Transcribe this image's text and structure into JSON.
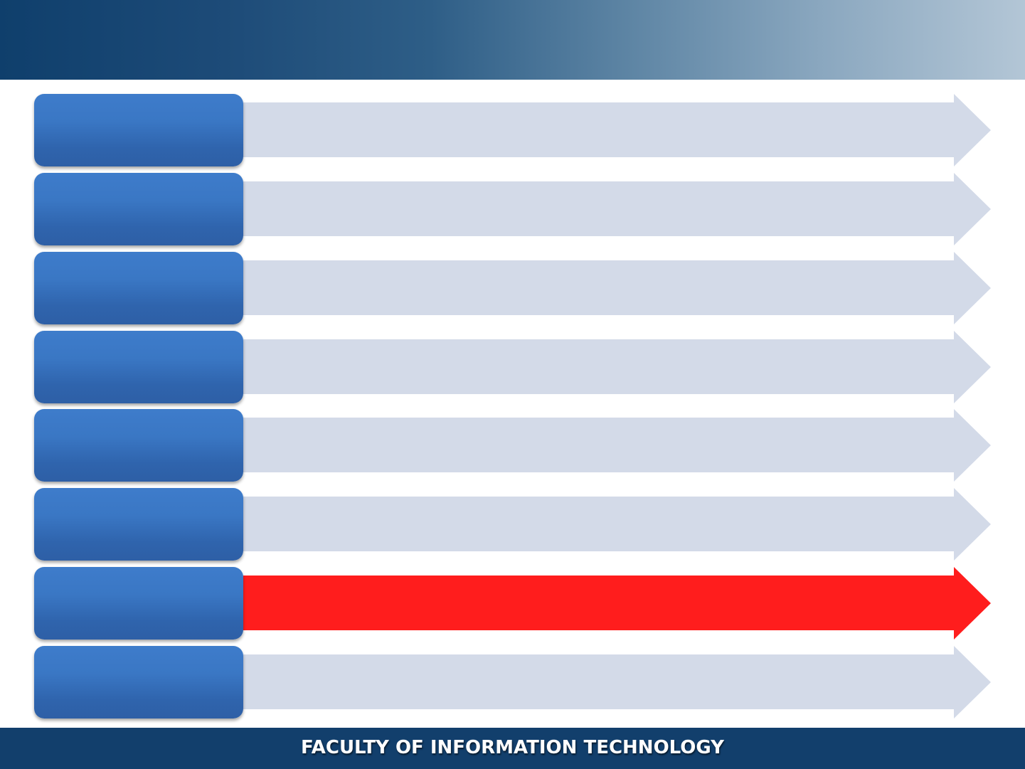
{
  "header": {
    "title": ""
  },
  "rows": [
    {
      "label": "",
      "text": "",
      "highlighted": false
    },
    {
      "label": "",
      "text": "",
      "highlighted": false
    },
    {
      "label": "",
      "text": "",
      "highlighted": false
    },
    {
      "label": "",
      "text": "",
      "highlighted": false
    },
    {
      "label": "",
      "text": "",
      "highlighted": false
    },
    {
      "label": "",
      "text": "",
      "highlighted": false
    },
    {
      "label": "",
      "text": "",
      "highlighted": true
    },
    {
      "label": "",
      "text": "",
      "highlighted": false
    }
  ],
  "colors": {
    "arrow_default": "#d3dae8",
    "arrow_highlight": "#ff1d1d",
    "label_box": "#3a77c4",
    "footer": "#123f6c"
  },
  "footer": {
    "text": "FACULTY OF INFORMATION TECHNOLOGY"
  }
}
